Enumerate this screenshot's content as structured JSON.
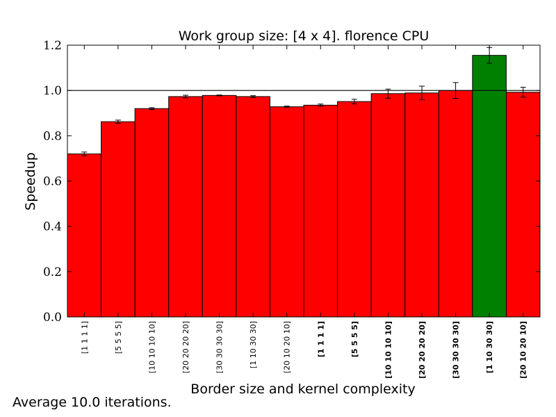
{
  "chart_data": {
    "type": "bar",
    "title": "Work group size: [4 x 4]. florence CPU",
    "xlabel": "Border size and kernel complexity",
    "ylabel": "Speedup",
    "ylim": [
      0.0,
      1.2
    ],
    "yticks": [
      "0.0",
      "0.2",
      "0.4",
      "0.6",
      "0.8",
      "1.0",
      "1.2"
    ],
    "reference_line": 1.0,
    "categories": [
      "[1 1 1 1]",
      "[5 5 5 5]",
      "[10 10 10 10]",
      "[20 20 20 20]",
      "[30 30 30 30]",
      "[1 10 30 30]",
      "[20 10 20 10]",
      "[1 1 1 1]",
      "[5 5 5 5]",
      "[10 10 10 10]",
      "[20 20 20 20]",
      "[30 30 30 30]",
      "[1 10 30 30]",
      "[20 10 20 10]"
    ],
    "category_bold": [
      false,
      false,
      false,
      false,
      false,
      false,
      false,
      true,
      true,
      true,
      true,
      true,
      true,
      true
    ],
    "values": [
      0.72,
      0.862,
      0.92,
      0.973,
      0.978,
      0.973,
      0.928,
      0.935,
      0.951,
      0.986,
      0.989,
      1.0,
      1.155,
      0.992
    ],
    "errors": [
      0.008,
      0.007,
      0.004,
      0.006,
      0.002,
      0.004,
      0.003,
      0.005,
      0.01,
      0.02,
      0.03,
      0.035,
      0.035,
      0.022
    ],
    "bar_colors": [
      "#ff0000",
      "#ff0000",
      "#ff0000",
      "#ff0000",
      "#ff0000",
      "#ff0000",
      "#ff0000",
      "#ff0000",
      "#ff0000",
      "#ff0000",
      "#ff0000",
      "#ff0000",
      "#008000",
      "#ff0000"
    ]
  },
  "footnote": "Average 10.0 iterations."
}
